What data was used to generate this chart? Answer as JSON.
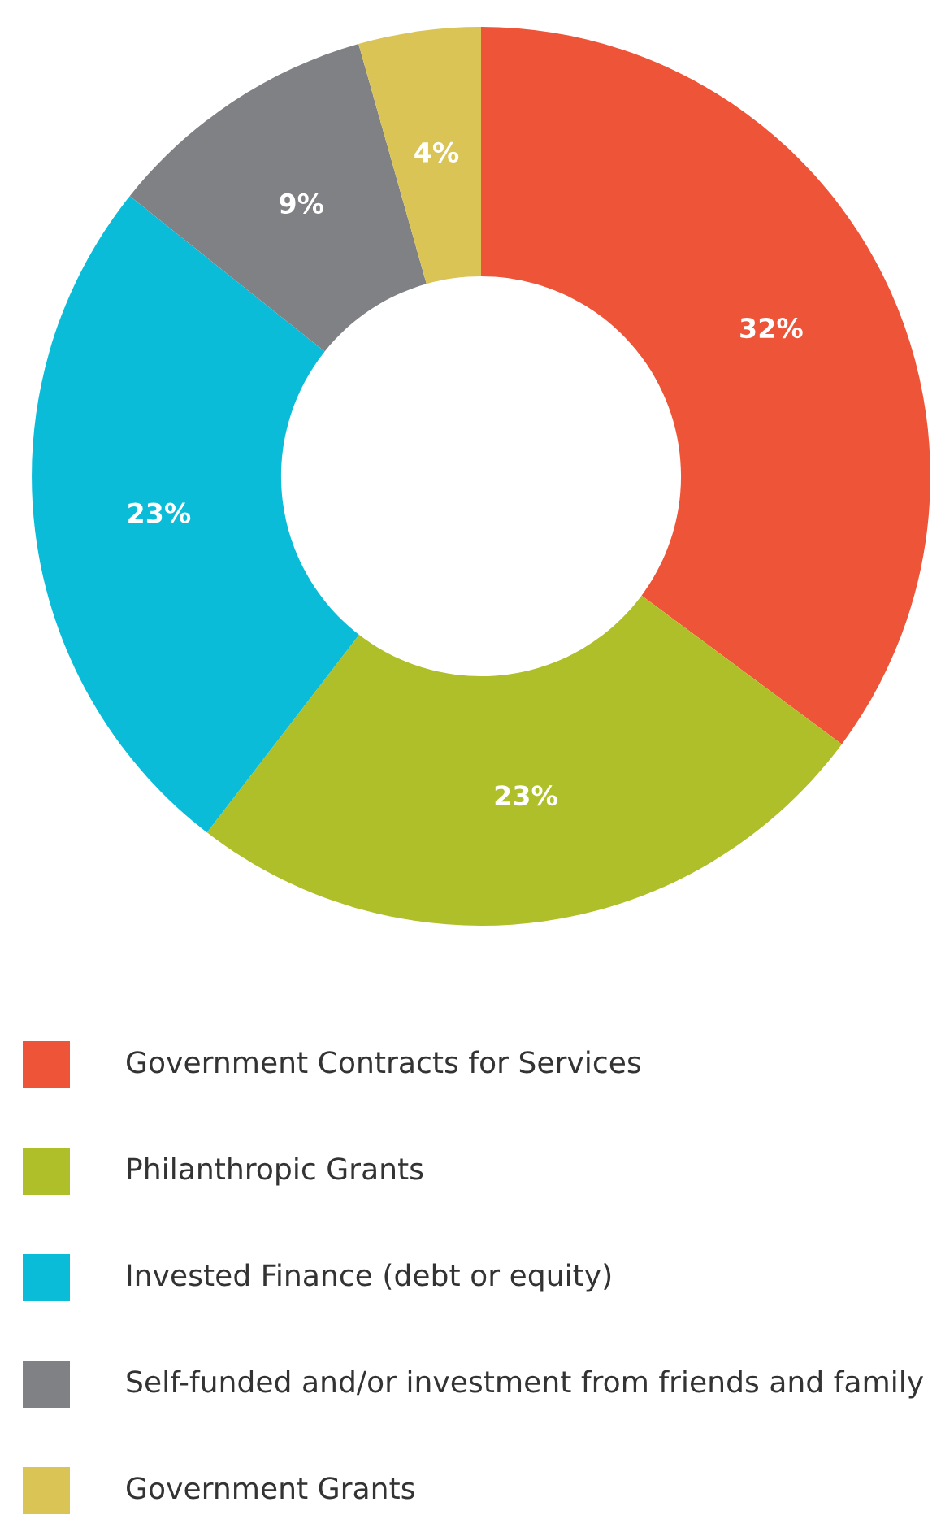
{
  "chart_data": {
    "type": "donut",
    "categories": [
      "Government Contracts for Services",
      "Philanthropic Grants",
      "Invested Finance (debt or equity)",
      "Self-funded and/or investment from friends and family",
      "Government Grants"
    ],
    "values": [
      32,
      23,
      23,
      9,
      4
    ],
    "colors": [
      "#ee5437",
      "#afbf2a",
      "#0bbcd9",
      "#808184",
      "#d9c455"
    ],
    "value_labels": [
      "32%",
      "23%",
      "23%",
      "9%",
      "4%"
    ],
    "legend": "bottom"
  }
}
